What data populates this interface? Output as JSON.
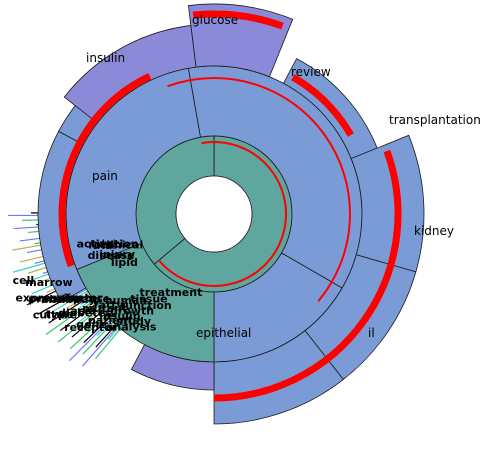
{
  "diagram": {
    "type": "sunburst",
    "colors": {
      "inner_ring": "#5fa69e",
      "ring_blue": "#7b9bd6",
      "ring_violet": "#8a8ad8",
      "highlight": "#ff0000",
      "outline": "#1a1a1a",
      "clutter_olive": "#b7b25a",
      "clutter_cyan": "#37d4c8",
      "clutter_green": "#38c870",
      "clutter_blue": "#6a7df0"
    },
    "segments": [
      {
        "id": "glucose",
        "label": "glucose"
      },
      {
        "id": "insulin",
        "label": "insulin"
      },
      {
        "id": "review",
        "label": "review"
      },
      {
        "id": "transplantation",
        "label": "transplantation"
      },
      {
        "id": "kidney",
        "label": "kidney"
      },
      {
        "id": "pain",
        "label": "pain"
      },
      {
        "id": "trial",
        "label": "trial"
      },
      {
        "id": "il",
        "label": "il"
      },
      {
        "id": "epithelial",
        "label": "epithelial"
      }
    ],
    "overlapping_labels": [
      "treatment",
      "human",
      "factor",
      "marrow",
      "tissue",
      "fatty",
      "response",
      "cell",
      "function",
      "mutant",
      "antibody",
      "clinical",
      "growth",
      "acid",
      "protein",
      "role",
      "insulin",
      "diabetes",
      "expression",
      "activation",
      "patients",
      "type",
      "injury",
      "study",
      "gene",
      "culture",
      "disease",
      "analysis",
      "receptor",
      "lipid"
    ]
  }
}
